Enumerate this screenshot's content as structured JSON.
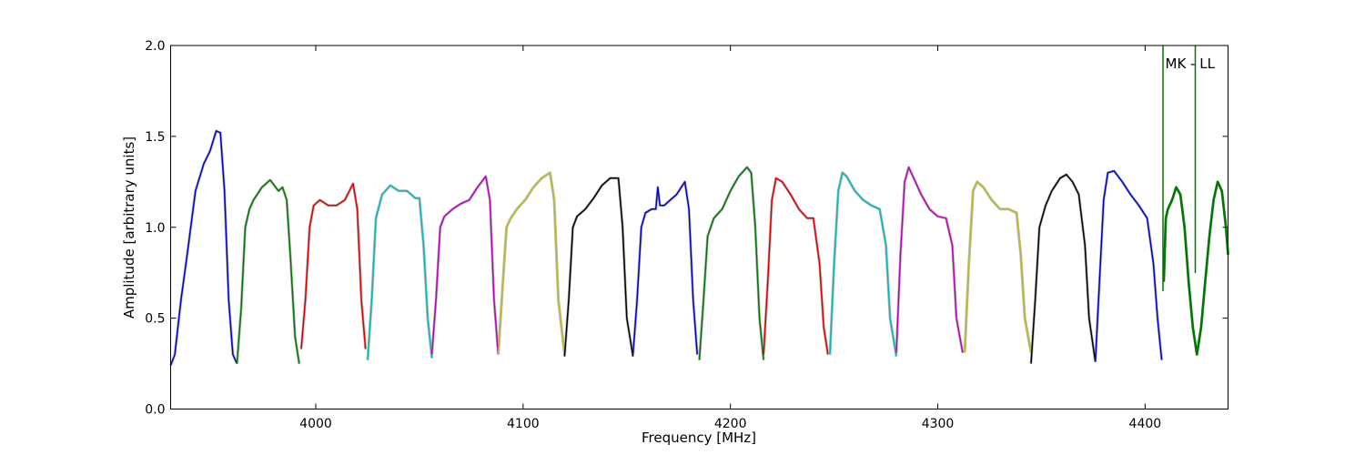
{
  "chart_data": {
    "type": "line",
    "title": "",
    "xlabel": "Frequency [MHz]",
    "ylabel": "Amplitude [arbitrary units]",
    "xlim": [
      3930,
      4440
    ],
    "ylim": [
      0.0,
      2.0
    ],
    "xticks": [
      4000,
      4100,
      4200,
      4300,
      4400
    ],
    "yticks": [
      0.0,
      0.5,
      1.0,
      1.5,
      2.0
    ],
    "xtick_labels": [
      "4000",
      "4100",
      "4200",
      "4300",
      "4400"
    ],
    "ytick_labels": [
      "0.0",
      "0.5",
      "1.0",
      "1.5",
      "2.0"
    ],
    "grid": false,
    "legend": "none",
    "annotation": "MK - LL",
    "colors": {
      "blue": "#0000cc",
      "green": "#007700",
      "red": "#dd0000",
      "cyan": "#00bbbb",
      "magenta": "#bb00bb",
      "olive": "#bbbb22",
      "black": "#000000",
      "gray": "#bbbbbb"
    },
    "series": [
      {
        "color": "blue",
        "x": [
          3930,
          3932,
          3935,
          3938,
          3942,
          3946,
          3949,
          3952,
          3954,
          3956,
          3958,
          3960,
          3962
        ],
        "y": [
          0.24,
          0.3,
          0.6,
          0.85,
          1.2,
          1.35,
          1.42,
          1.53,
          1.52,
          1.2,
          0.6,
          0.3,
          0.25
        ]
      },
      {
        "color": "green",
        "x": [
          3962,
          3964,
          3966,
          3968,
          3970,
          3974,
          3978,
          3982,
          3984,
          3986,
          3988,
          3990,
          3992
        ],
        "y": [
          0.25,
          0.55,
          1.0,
          1.1,
          1.15,
          1.22,
          1.26,
          1.2,
          1.22,
          1.15,
          0.8,
          0.4,
          0.25
        ]
      },
      {
        "color": "red",
        "x": [
          3993,
          3995,
          3997,
          3999,
          4002,
          4006,
          4010,
          4014,
          4018,
          4020,
          4022,
          4024
        ],
        "y": [
          0.33,
          0.6,
          1.0,
          1.12,
          1.15,
          1.12,
          1.12,
          1.15,
          1.24,
          1.1,
          0.6,
          0.33
        ]
      },
      {
        "color": "cyan",
        "x": [
          4025,
          4027,
          4029,
          4032,
          4036,
          4040,
          4044,
          4048,
          4050,
          4052,
          4054,
          4056
        ],
        "y": [
          0.27,
          0.6,
          1.05,
          1.18,
          1.23,
          1.2,
          1.2,
          1.16,
          1.16,
          0.9,
          0.5,
          0.28
        ]
      },
      {
        "color": "magenta",
        "x": [
          4056,
          4058,
          4060,
          4062,
          4066,
          4070,
          4074,
          4078,
          4082,
          4084,
          4086,
          4088
        ],
        "y": [
          0.3,
          0.6,
          1.0,
          1.06,
          1.1,
          1.13,
          1.15,
          1.22,
          1.28,
          1.15,
          0.6,
          0.3
        ]
      },
      {
        "color": "olive",
        "x": [
          4088,
          4090,
          4092,
          4094,
          4097,
          4101,
          4105,
          4109,
          4113,
          4115,
          4117,
          4120
        ],
        "y": [
          0.3,
          0.65,
          1.0,
          1.05,
          1.1,
          1.15,
          1.22,
          1.27,
          1.3,
          1.15,
          0.6,
          0.3
        ]
      },
      {
        "color": "black",
        "x": [
          4120,
          4122,
          4124,
          4126,
          4130,
          4134,
          4138,
          4142,
          4146,
          4148,
          4150,
          4153
        ],
        "y": [
          0.29,
          0.6,
          1.0,
          1.06,
          1.1,
          1.16,
          1.23,
          1.27,
          1.27,
          1.0,
          0.5,
          0.29
        ]
      },
      {
        "color": "blue",
        "x": [
          4153,
          4155,
          4157,
          4159,
          4162,
          4164,
          4165,
          4166,
          4168,
          4170,
          4174,
          4178,
          4180,
          4182,
          4184
        ],
        "y": [
          0.3,
          0.6,
          1.0,
          1.08,
          1.1,
          1.1,
          1.22,
          1.12,
          1.12,
          1.14,
          1.18,
          1.25,
          1.1,
          0.6,
          0.3
        ]
      },
      {
        "color": "green",
        "x": [
          4185,
          4187,
          4189,
          4192,
          4196,
          4200,
          4204,
          4208,
          4210,
          4212,
          4214,
          4216
        ],
        "y": [
          0.27,
          0.6,
          0.95,
          1.05,
          1.1,
          1.2,
          1.28,
          1.33,
          1.3,
          1.0,
          0.5,
          0.27
        ]
      },
      {
        "color": "red",
        "x": [
          4216,
          4218,
          4220,
          4222,
          4225,
          4229,
          4233,
          4237,
          4240,
          4243,
          4245,
          4247
        ],
        "y": [
          0.3,
          0.7,
          1.15,
          1.27,
          1.25,
          1.18,
          1.1,
          1.05,
          1.05,
          0.8,
          0.45,
          0.3
        ]
      },
      {
        "color": "cyan",
        "x": [
          4248,
          4250,
          4252,
          4254,
          4256,
          4260,
          4264,
          4268,
          4272,
          4275,
          4277,
          4280
        ],
        "y": [
          0.3,
          0.8,
          1.2,
          1.3,
          1.28,
          1.2,
          1.15,
          1.12,
          1.1,
          0.9,
          0.5,
          0.29
        ]
      },
      {
        "color": "magenta",
        "x": [
          4280,
          4282,
          4284,
          4286,
          4288,
          4292,
          4296,
          4300,
          4304,
          4307,
          4309,
          4312
        ],
        "y": [
          0.31,
          0.85,
          1.25,
          1.33,
          1.28,
          1.18,
          1.1,
          1.06,
          1.05,
          0.9,
          0.5,
          0.31
        ]
      },
      {
        "color": "olive",
        "x": [
          4313,
          4315,
          4317,
          4319,
          4322,
          4326,
          4330,
          4334,
          4338,
          4340,
          4342,
          4345
        ],
        "y": [
          0.31,
          0.8,
          1.2,
          1.25,
          1.22,
          1.15,
          1.1,
          1.1,
          1.08,
          0.85,
          0.5,
          0.31
        ]
      },
      {
        "color": "black",
        "x": [
          4345,
          4347,
          4349,
          4352,
          4355,
          4359,
          4362,
          4365,
          4368,
          4371,
          4373,
          4376
        ],
        "y": [
          0.25,
          0.6,
          1.0,
          1.12,
          1.2,
          1.27,
          1.29,
          1.25,
          1.18,
          0.9,
          0.5,
          0.26
        ]
      },
      {
        "color": "blue",
        "x": [
          4376,
          4378,
          4380,
          4382,
          4385,
          4389,
          4393,
          4397,
          4401,
          4404,
          4406,
          4408
        ],
        "y": [
          0.26,
          0.7,
          1.15,
          1.3,
          1.31,
          1.25,
          1.18,
          1.12,
          1.05,
          0.8,
          0.5,
          0.27
        ]
      },
      {
        "color": "green",
        "x": [
          4409,
          4410,
          4411,
          4413,
          4415,
          4417,
          4419,
          4421,
          4423,
          4425,
          4427,
          4429,
          4431,
          4433,
          4435,
          4437,
          4439,
          4440
        ],
        "y": [
          0.7,
          1.05,
          1.1,
          1.15,
          1.22,
          1.18,
          1.0,
          0.7,
          0.45,
          0.3,
          0.45,
          0.7,
          0.95,
          1.15,
          1.25,
          1.2,
          1.0,
          0.85
        ]
      }
    ]
  }
}
